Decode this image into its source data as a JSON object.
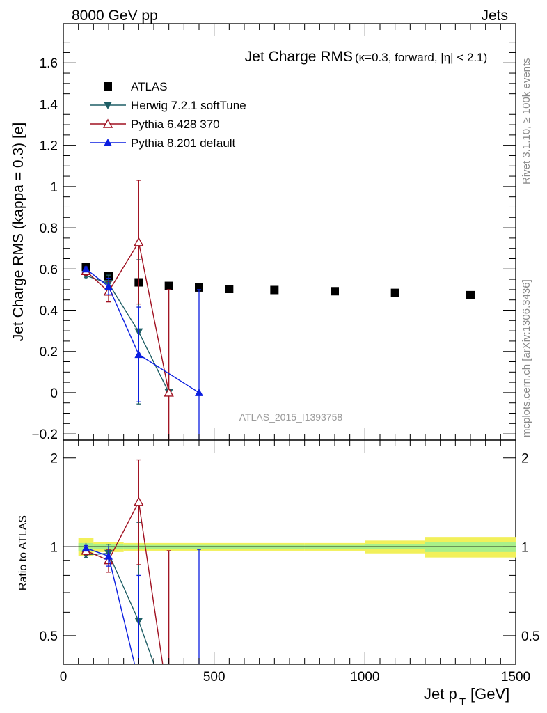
{
  "header": {
    "left": "8000 GeV pp",
    "right": "Jets"
  },
  "side_labels": {
    "top": "Rivet 3.1.10, ≥ 100k events",
    "bottom": "mcplots.cern.ch [arXiv:1306.3436]"
  },
  "watermark": "ATLAS_2015_I1393758",
  "chart_data": [
    {
      "type": "scatter",
      "title": "Jet Charge RMS",
      "subtitle": "(κ=0.3, forward, |η| < 2.1)",
      "ylabel": "Jet Charge RMS (kappa = 0.3) [e]",
      "xlim": [
        0,
        1500
      ],
      "ylim": [
        -0.23,
        1.79
      ],
      "yticks": [
        -0.2,
        0,
        0.2,
        0.4,
        0.6,
        0.8,
        1,
        1.2,
        1.4,
        1.6
      ],
      "ytick_labels": [
        "−0.2",
        "0",
        "0.2",
        "0.4",
        "0.6",
        "0.8",
        "1",
        "1.2",
        "1.4",
        "1.6"
      ],
      "legend_position": "top-left",
      "colors": {
        "atlas": "#000000",
        "herwig": "#1f5f66",
        "pythia6": "#a01020",
        "pythia8": "#0b1ee0"
      },
      "series": [
        {
          "key": "atlas",
          "name": "ATLAS",
          "marker": "square",
          "x": [
            75,
            150,
            250,
            350,
            450,
            550,
            700,
            900,
            1100,
            1350
          ],
          "y": [
            0.61,
            0.565,
            0.535,
            0.518,
            0.51,
            0.503,
            0.498,
            0.492,
            0.484,
            0.473
          ],
          "yerr": [
            0.005,
            0.005,
            0.004,
            0.004,
            0.004,
            0.004,
            0.004,
            0.004,
            0.004,
            0.004
          ]
        },
        {
          "key": "herwig",
          "name": "Herwig 7.2.1 softTune",
          "marker": "triangle-down",
          "x": [
            75,
            150,
            250,
            350
          ],
          "y": [
            0.568,
            0.53,
            0.295,
            0.0
          ],
          "yerr": [
            0.01,
            0.04,
            0.35,
            0.0
          ]
        },
        {
          "key": "pythia6",
          "name": "Pythia 6.428 370",
          "marker": "triangle-up-open",
          "x": [
            75,
            150,
            250,
            350
          ],
          "y": [
            0.59,
            0.49,
            0.73,
            0.0
          ],
          "yerr": [
            0.02,
            0.05,
            0.3,
            0.5
          ]
        },
        {
          "key": "pythia8",
          "name": "Pythia 8.201 default",
          "marker": "triangle-up",
          "x": [
            75,
            150,
            250,
            450
          ],
          "y": [
            0.6,
            0.515,
            0.185,
            0.0
          ],
          "yerr": [
            0.01,
            0.04,
            0.23,
            0.5
          ]
        }
      ]
    },
    {
      "type": "line",
      "ylabel": "Ratio to ATLAS",
      "xlabel": "Jet p_T [GeV]",
      "xlim": [
        0,
        1500
      ],
      "ylim": [
        0.4,
        2.3
      ],
      "yscale": "log",
      "xticks": [
        0,
        500,
        1000,
        1500
      ],
      "xtick_labels": [
        "0",
        "500",
        "1000",
        "1500"
      ],
      "yticks": [
        0.5,
        1,
        2
      ],
      "ytick_labels": [
        "0.5",
        "1",
        "2"
      ],
      "reference_line": 1,
      "uncertainty_band": {
        "x_edges": [
          50,
          100,
          200,
          300,
          400,
          500,
          600,
          800,
          1000,
          1200,
          1500
        ],
        "stat_sys": [
          0.07,
          0.04,
          0.03,
          0.03,
          0.03,
          0.03,
          0.03,
          0.03,
          0.05,
          0.08
        ],
        "stat": [
          0.03,
          0.02,
          0.015,
          0.015,
          0.015,
          0.015,
          0.015,
          0.015,
          0.02,
          0.04
        ]
      },
      "series": [
        {
          "key": "herwig",
          "name": "Herwig 7.2.1 softTune",
          "x": [
            75,
            150,
            250,
            350
          ],
          "y": [
            0.94,
            0.95,
            0.56,
            0.0
          ],
          "yerr": [
            0.02,
            0.07,
            0.65,
            0.0
          ]
        },
        {
          "key": "pythia6",
          "name": "Pythia 6.428 370",
          "x": [
            75,
            150,
            250,
            350
          ],
          "y": [
            0.97,
            0.9,
            1.42,
            0.0
          ],
          "yerr": [
            0.03,
            0.08,
            0.55,
            0.97
          ]
        },
        {
          "key": "pythia8",
          "name": "Pythia 8.201 default",
          "x": [
            75,
            150,
            250,
            450
          ],
          "y": [
            0.99,
            0.93,
            0.35,
            0.0
          ],
          "yerr": [
            0.02,
            0.07,
            0.45,
            0.98
          ]
        }
      ]
    }
  ]
}
